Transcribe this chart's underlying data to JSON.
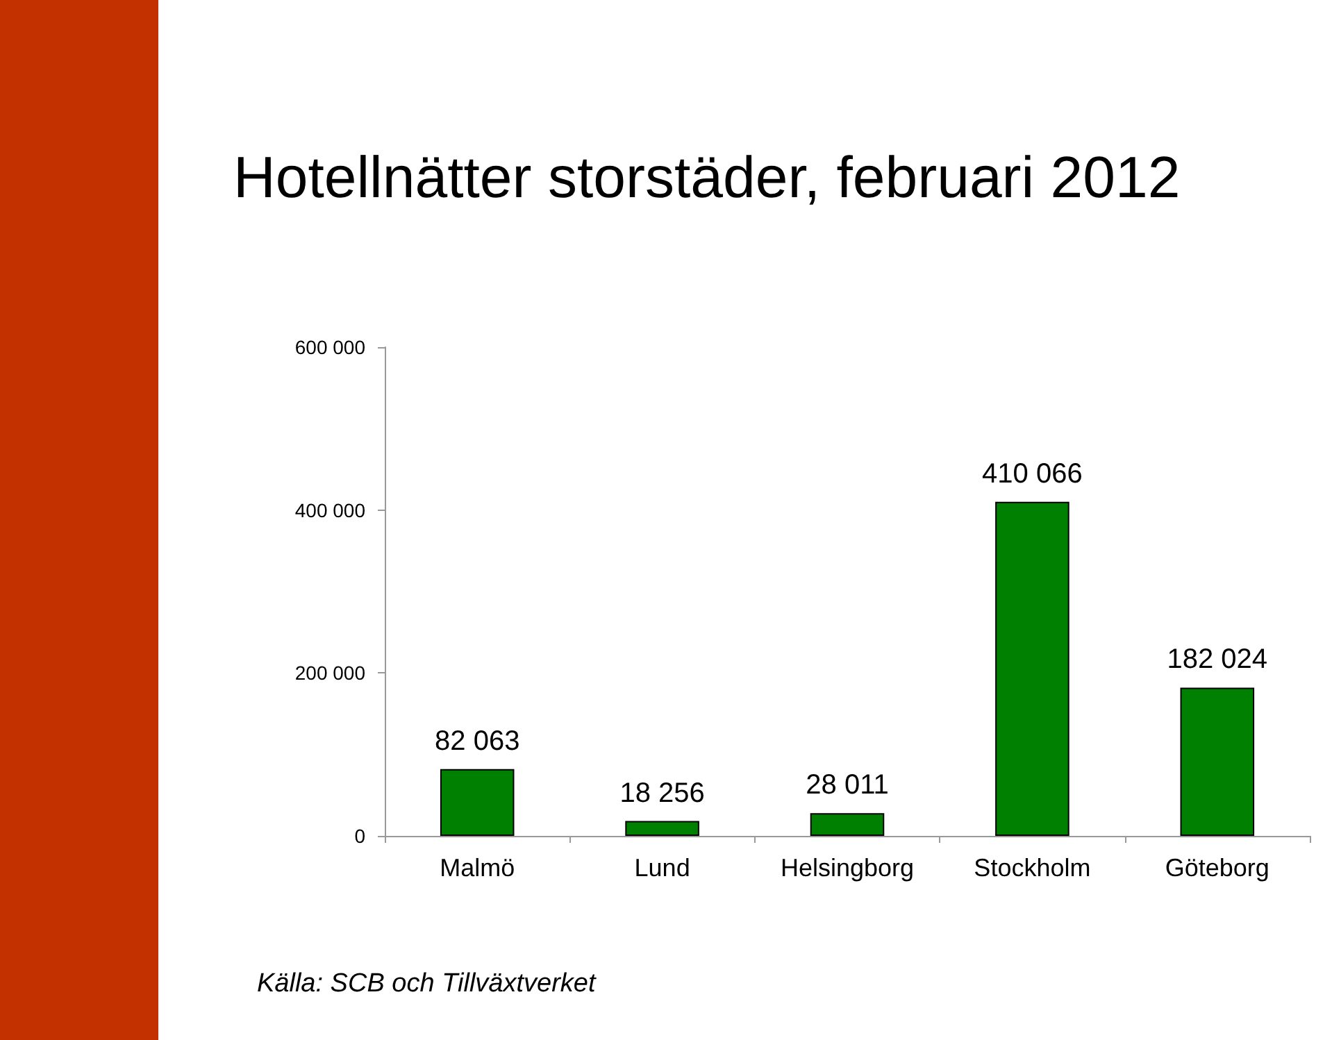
{
  "chart_data": {
    "type": "bar",
    "title": "Hotellnätter storstäder, februari 2012",
    "categories": [
      "Malmö",
      "Lund",
      "Helsingborg",
      "Stockholm",
      "Göteborg"
    ],
    "values": [
      82063,
      18256,
      28011,
      410066,
      182024
    ],
    "value_labels": [
      "82 063",
      "18 256",
      "28 011",
      "410 066",
      "182 024"
    ],
    "color": "#008000",
    "ylim": [
      0,
      600000
    ],
    "yticks": [
      {
        "value": 0,
        "label": "0"
      },
      {
        "value": 200000,
        "label": "200 000"
      },
      {
        "value": 400000,
        "label": "400 000"
      },
      {
        "value": 600000,
        "label": "600 000"
      }
    ],
    "grid": false,
    "annotations": [
      "Källa: SCB och Tillväxtverket"
    ]
  }
}
